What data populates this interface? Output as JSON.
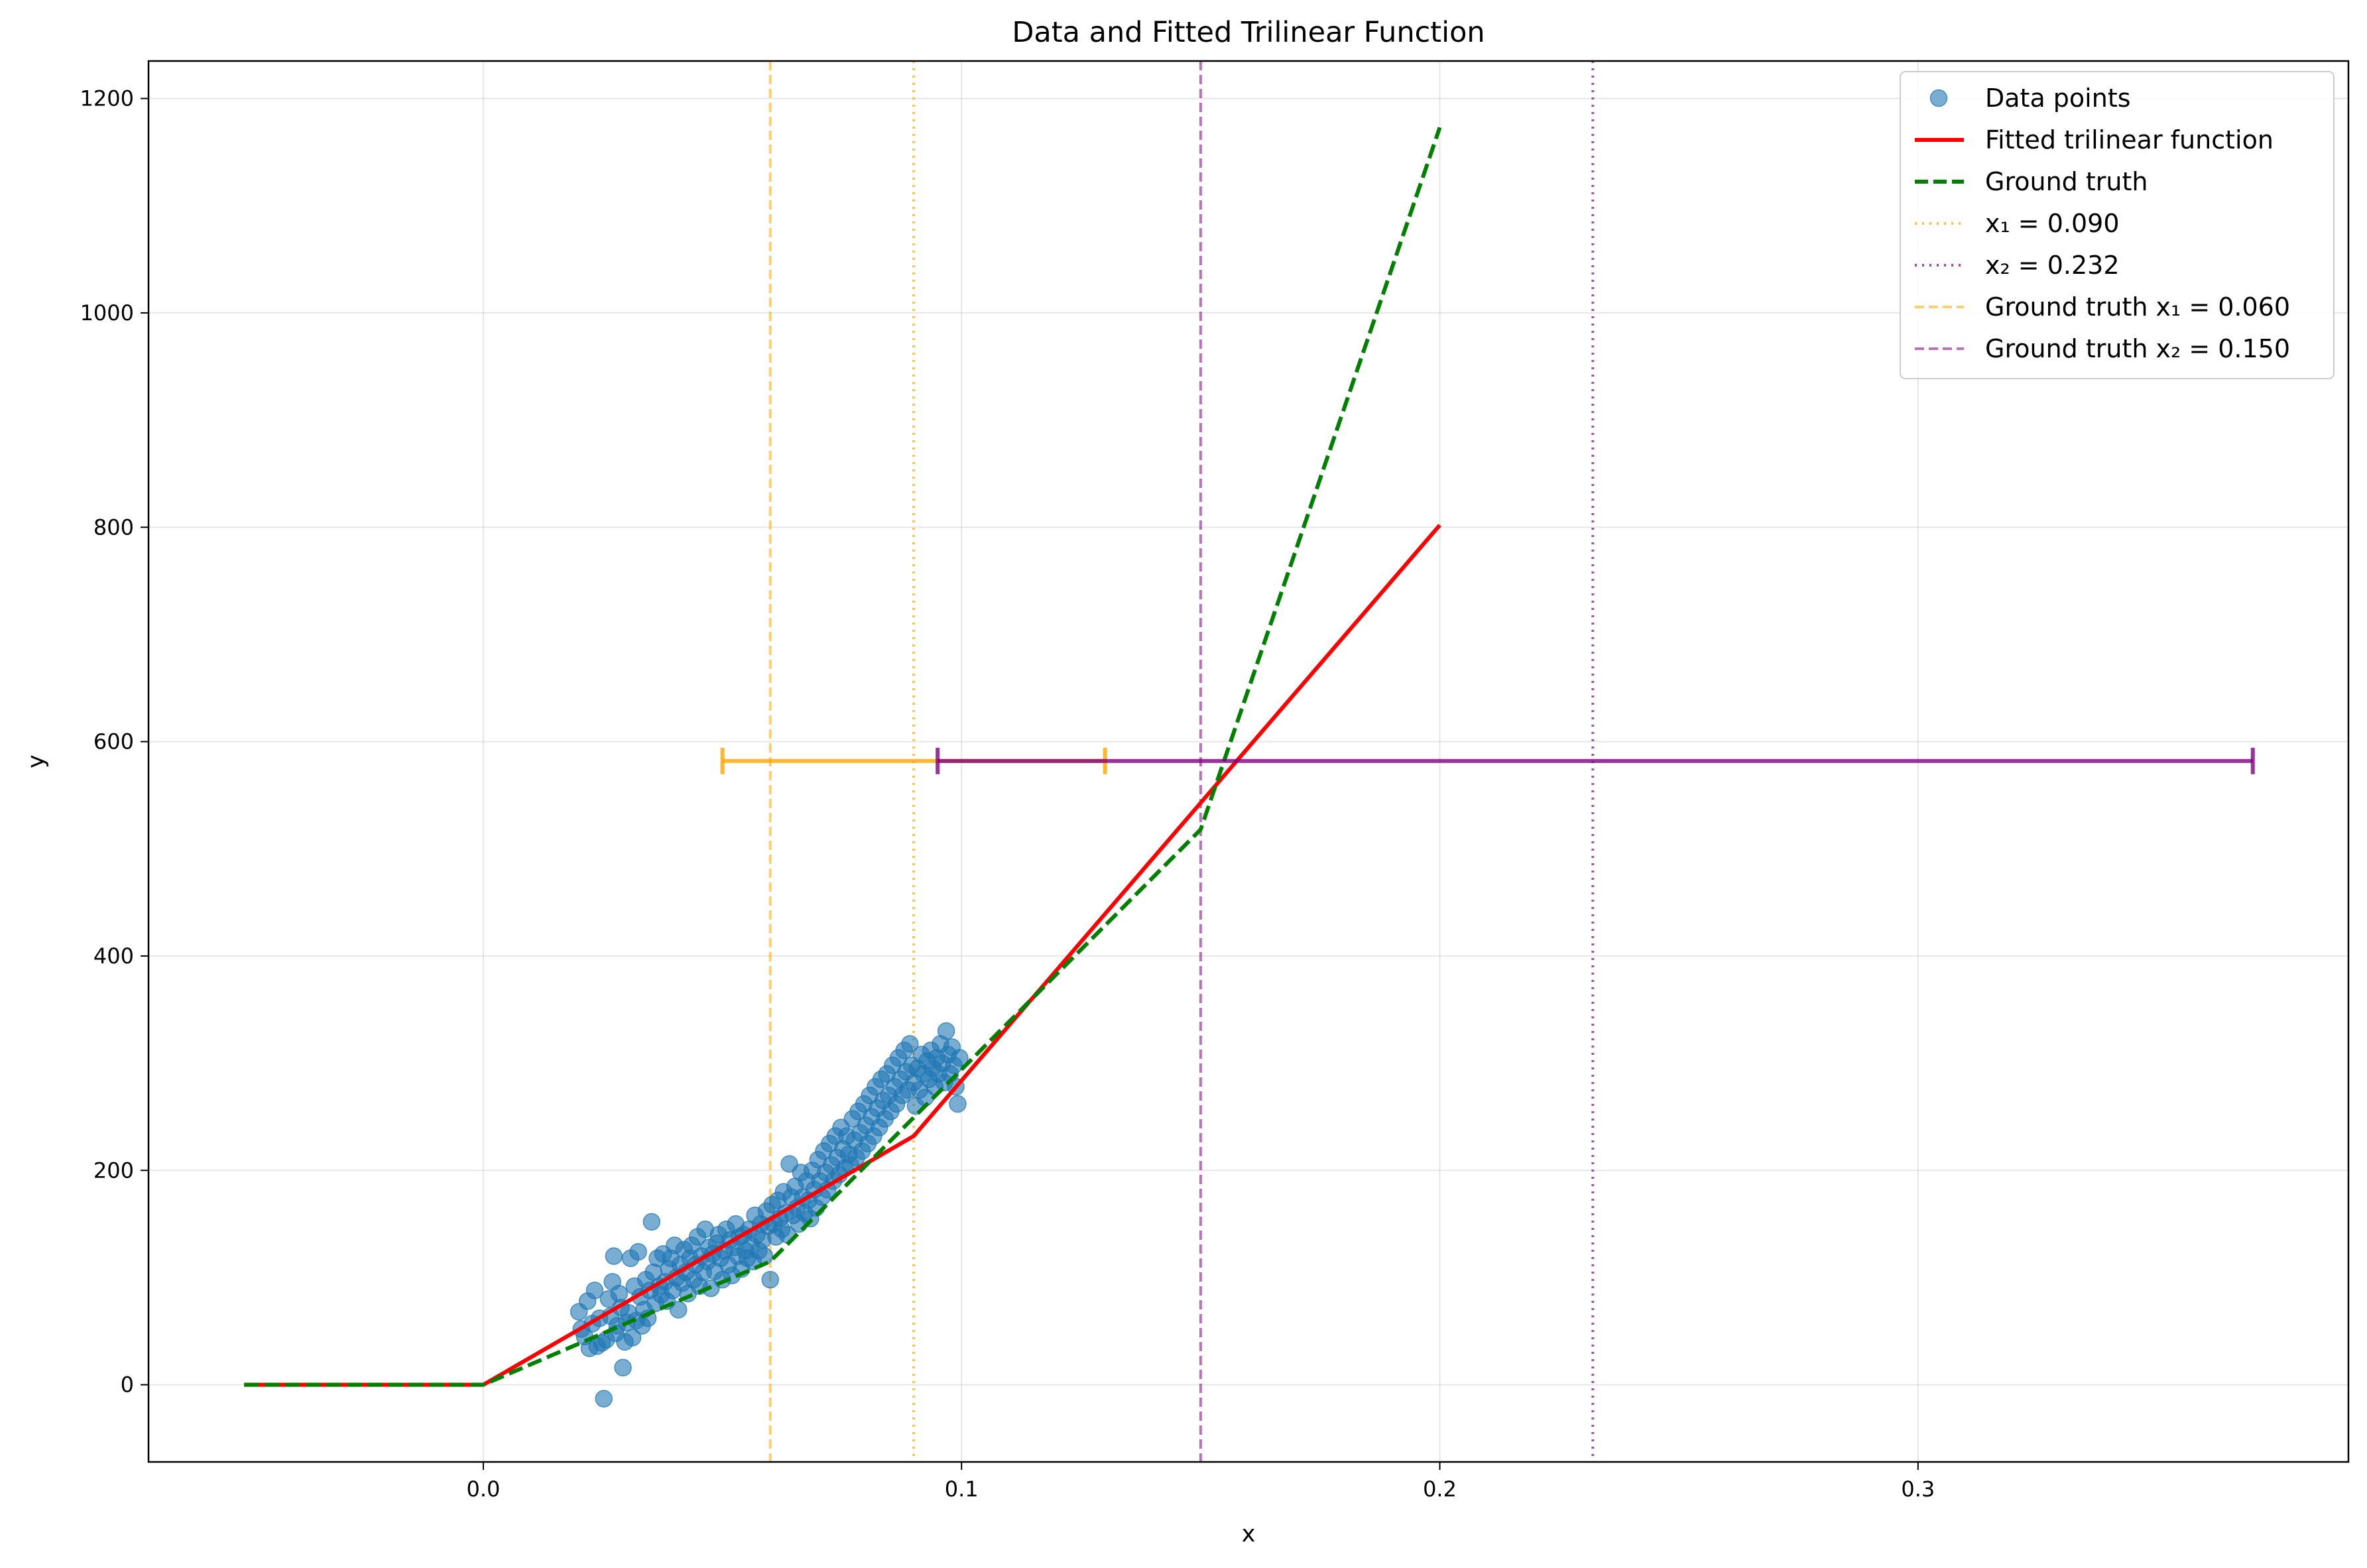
{
  "chart_data": {
    "type": "scatter",
    "title": "Data and Fitted Trilinear Function",
    "xlabel": "x",
    "ylabel": "y",
    "xlim": [
      -0.07,
      0.39
    ],
    "ylim": [
      -72,
      1235
    ],
    "xticks": [
      0.0,
      0.1,
      0.2,
      0.3
    ],
    "xtick_labels": [
      "0.0",
      "0.1",
      "0.2",
      "0.3"
    ],
    "yticks": [
      0,
      200,
      400,
      600,
      800,
      1000,
      1200
    ],
    "ytick_labels": [
      "0",
      "200",
      "400",
      "600",
      "800",
      "1000",
      "1200"
    ],
    "grid": true,
    "legend_position": "top-right",
    "colors": {
      "scatter": "#1f77b4",
      "fit": "#ff0000",
      "truth": "#007f00",
      "x1": "#ffa500",
      "x2": "#800080"
    },
    "scatter": {
      "name": "Data points",
      "points": [
        [
          0.02,
          68
        ],
        [
          0.0205,
          52
        ],
        [
          0.0212,
          45
        ],
        [
          0.0218,
          78
        ],
        [
          0.0222,
          34
        ],
        [
          0.0228,
          57
        ],
        [
          0.0233,
          88
        ],
        [
          0.0238,
          36
        ],
        [
          0.0243,
          62
        ],
        [
          0.0248,
          39
        ],
        [
          0.0252,
          -13
        ],
        [
          0.0257,
          42
        ],
        [
          0.0262,
          80
        ],
        [
          0.0266,
          64
        ],
        [
          0.027,
          96
        ],
        [
          0.0273,
          120
        ],
        [
          0.0277,
          48
        ],
        [
          0.028,
          55
        ],
        [
          0.0284,
          85
        ],
        [
          0.0288,
          72
        ],
        [
          0.0292,
          16
        ],
        [
          0.0296,
          40
        ],
        [
          0.03,
          58
        ],
        [
          0.0304,
          67
        ],
        [
          0.0308,
          118
        ],
        [
          0.0312,
          44
        ],
        [
          0.0316,
          92
        ],
        [
          0.032,
          60
        ],
        [
          0.0324,
          124
        ],
        [
          0.0328,
          82
        ],
        [
          0.0332,
          55
        ],
        [
          0.0336,
          70
        ],
        [
          0.034,
          98
        ],
        [
          0.0344,
          62
        ],
        [
          0.0348,
          88
        ],
        [
          0.0352,
          152
        ],
        [
          0.0356,
          105
        ],
        [
          0.036,
          76
        ],
        [
          0.0364,
          118
        ],
        [
          0.0368,
          92
        ],
        [
          0.0372,
          84
        ],
        [
          0.0376,
          122
        ],
        [
          0.038,
          96
        ],
        [
          0.0384,
          78
        ],
        [
          0.0388,
          108
        ],
        [
          0.0392,
          118
        ],
        [
          0.0396,
          88
        ],
        [
          0.04,
          130
        ],
        [
          0.0404,
          100
        ],
        [
          0.0408,
          70
        ],
        [
          0.0412,
          112
        ],
        [
          0.0416,
          95
        ],
        [
          0.042,
          126
        ],
        [
          0.0424,
          105
        ],
        [
          0.0428,
          85
        ],
        [
          0.0432,
          118
        ],
        [
          0.0436,
          130
        ],
        [
          0.044,
          98
        ],
        [
          0.0444,
          112
        ],
        [
          0.0448,
          138
        ],
        [
          0.0452,
          92
        ],
        [
          0.0456,
          120
        ],
        [
          0.046,
          105
        ],
        [
          0.0464,
          145
        ],
        [
          0.0468,
          115
        ],
        [
          0.0472,
          128
        ],
        [
          0.0476,
          90
        ],
        [
          0.048,
          122
        ],
        [
          0.0484,
          106
        ],
        [
          0.0488,
          132
        ],
        [
          0.0492,
          140
        ],
        [
          0.0496,
          118
        ],
        [
          0.05,
          98
        ],
        [
          0.0504,
          125
        ],
        [
          0.0508,
          145
        ],
        [
          0.0512,
          112
        ],
        [
          0.0516,
          135
        ],
        [
          0.052,
          102
        ],
        [
          0.0524,
          128
        ],
        [
          0.0528,
          150
        ],
        [
          0.0532,
          120
        ],
        [
          0.0536,
          138
        ],
        [
          0.054,
          108
        ],
        [
          0.0544,
          140
        ],
        [
          0.0548,
          125
        ],
        [
          0.0552,
          118
        ],
        [
          0.0556,
          145
        ],
        [
          0.056,
          130
        ],
        [
          0.0564,
          115
        ],
        [
          0.0568,
          158
        ],
        [
          0.0572,
          140
        ],
        [
          0.0576,
          125
        ],
        [
          0.058,
          150
        ],
        [
          0.0584,
          135
        ],
        [
          0.0588,
          120
        ],
        [
          0.0592,
          162
        ],
        [
          0.0596,
          148
        ],
        [
          0.06,
          98
        ],
        [
          0.0604,
          168
        ],
        [
          0.0608,
          150
        ],
        [
          0.0612,
          138
        ],
        [
          0.0616,
          172
        ],
        [
          0.062,
          155
        ],
        [
          0.0624,
          145
        ],
        [
          0.0628,
          180
        ],
        [
          0.0632,
          160
        ],
        [
          0.0636,
          140
        ],
        [
          0.064,
          206
        ],
        [
          0.0644,
          175
        ],
        [
          0.0648,
          158
        ],
        [
          0.0652,
          185
        ],
        [
          0.0656,
          165
        ],
        [
          0.066,
          150
        ],
        [
          0.0664,
          198
        ],
        [
          0.0668,
          175
        ],
        [
          0.0672,
          160
        ],
        [
          0.0676,
          190
        ],
        [
          0.068,
          172
        ],
        [
          0.0684,
          155
        ],
        [
          0.0688,
          200
        ],
        [
          0.0692,
          182
        ],
        [
          0.0696,
          165
        ],
        [
          0.07,
          210
        ],
        [
          0.0704,
          190
        ],
        [
          0.0708,
          175
        ],
        [
          0.0712,
          218
        ],
        [
          0.0716,
          198
        ],
        [
          0.072,
          182
        ],
        [
          0.0724,
          225
        ],
        [
          0.0728,
          205
        ],
        [
          0.0732,
          190
        ],
        [
          0.0736,
          232
        ],
        [
          0.074,
          212
        ],
        [
          0.0744,
          196
        ],
        [
          0.0748,
          240
        ],
        [
          0.0752,
          220
        ],
        [
          0.0756,
          202
        ],
        [
          0.076,
          232
        ],
        [
          0.0764,
          215
        ],
        [
          0.0768,
          205
        ],
        [
          0.0772,
          248
        ],
        [
          0.0776,
          228
        ],
        [
          0.078,
          212
        ],
        [
          0.0784,
          255
        ],
        [
          0.0788,
          235
        ],
        [
          0.0792,
          218
        ],
        [
          0.0796,
          262
        ],
        [
          0.08,
          242
        ],
        [
          0.0804,
          225
        ],
        [
          0.0808,
          270
        ],
        [
          0.0812,
          250
        ],
        [
          0.0816,
          232
        ],
        [
          0.082,
          278
        ],
        [
          0.0824,
          258
        ],
        [
          0.0828,
          240
        ],
        [
          0.0832,
          285
        ],
        [
          0.0836,
          265
        ],
        [
          0.084,
          248
        ],
        [
          0.0844,
          290
        ],
        [
          0.0848,
          270
        ],
        [
          0.0852,
          255
        ],
        [
          0.0856,
          298
        ],
        [
          0.086,
          278
        ],
        [
          0.0864,
          262
        ],
        [
          0.0868,
          305
        ],
        [
          0.0872,
          285
        ],
        [
          0.0876,
          270
        ],
        [
          0.088,
          312
        ],
        [
          0.0884,
          292
        ],
        [
          0.0888,
          275
        ],
        [
          0.0892,
          318
        ],
        [
          0.0896,
          298
        ],
        [
          0.09,
          282
        ],
        [
          0.0904,
          260
        ],
        [
          0.0908,
          295
        ],
        [
          0.0912,
          275
        ],
        [
          0.0916,
          308
        ],
        [
          0.092,
          290
        ],
        [
          0.0924,
          268
        ],
        [
          0.0928,
          302
        ],
        [
          0.0932,
          285
        ],
        [
          0.0936,
          312
        ],
        [
          0.094,
          295
        ],
        [
          0.0944,
          278
        ],
        [
          0.0948,
          305
        ],
        [
          0.0952,
          290
        ],
        [
          0.0956,
          318
        ],
        [
          0.096,
          300
        ],
        [
          0.0964,
          282
        ],
        [
          0.0968,
          330
        ],
        [
          0.0972,
          308
        ],
        [
          0.0976,
          290
        ],
        [
          0.098,
          315
        ],
        [
          0.0984,
          298
        ],
        [
          0.0988,
          278
        ],
        [
          0.0992,
          262
        ],
        [
          0.0996,
          305
        ]
      ]
    },
    "series": [
      {
        "name": "Fitted trilinear function",
        "style": "solid",
        "x": [
          -0.05,
          0.0,
          0.09,
          0.2
        ],
        "y": [
          0,
          0,
          232,
          802
        ]
      },
      {
        "name": "Ground truth",
        "style": "dashed",
        "x": [
          -0.05,
          0.0,
          0.06,
          0.15,
          0.2
        ],
        "y": [
          0,
          0,
          115,
          518,
          1173
        ]
      }
    ],
    "vlines": [
      {
        "name": "x₁ = 0.090",
        "x": 0.09,
        "style": "dotted",
        "color_key": "x1"
      },
      {
        "name": "x₂ = 0.232",
        "x": 0.232,
        "style": "dotted",
        "color_key": "x2"
      },
      {
        "name": "Ground truth x₁ = 0.060",
        "x": 0.06,
        "style": "dashed",
        "color_key": "x1"
      },
      {
        "name": "Ground truth x₂ = 0.150",
        "x": 0.15,
        "style": "dashed",
        "color_key": "x2"
      }
    ],
    "intervals": [
      {
        "lo": 0.05,
        "hi": 0.13,
        "y": 582,
        "color_key": "x1"
      },
      {
        "lo": 0.095,
        "hi": 0.37,
        "y": 582,
        "color_key": "x2"
      }
    ],
    "legend": [
      "Data points",
      "Fitted trilinear function",
      "Ground truth",
      "x₁ = 0.090",
      "x₂ = 0.232",
      "Ground truth x₁ = 0.060",
      "Ground truth x₂ = 0.150"
    ]
  }
}
